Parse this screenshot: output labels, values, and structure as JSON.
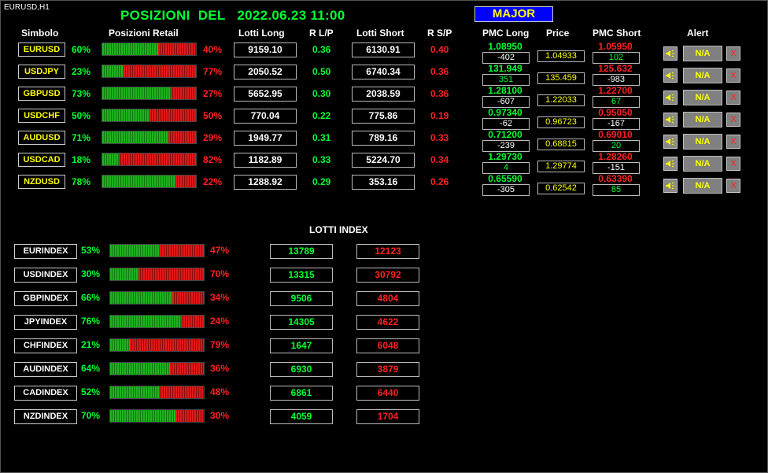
{
  "window_label": "EURUSD,H1",
  "title": "POSIZIONI  DEL   2022.06.23 11:00",
  "major_button": "MAJOR",
  "headers": {
    "symbol": "Simbolo",
    "retail": "Posizioni Retail",
    "lots_long": "Lotti Long",
    "ratio_lp": "R L/P",
    "lots_short": "Lotti Short",
    "ratio_sp": "R S/P",
    "pmc_long": "PMC Long",
    "price": "Price",
    "pmc_short": "PMC Short",
    "alert": "Alert"
  },
  "colors": {
    "long": "#00ff33",
    "short": "#ff2020",
    "symbol": "#ffff00",
    "major_bg": "#0000ff"
  },
  "pairs": [
    {
      "symbol": "EURUSD",
      "long_pct": 60,
      "long_pct_label": "60%",
      "short_pct_label": "40%",
      "lots_long": "9159.10",
      "ratio_lp": "0.36",
      "lots_short": "6130.91",
      "ratio_sp": "0.40",
      "pmc_long": "1.08950",
      "pmc_long_diff": "-402",
      "price": "1.04933",
      "pmc_short": "1.05950",
      "pmc_short_diff": "102",
      "alert": "N/A",
      "alert_close": "X"
    },
    {
      "symbol": "USDJPY",
      "long_pct": 23,
      "long_pct_label": "23%",
      "short_pct_label": "77%",
      "lots_long": "2050.52",
      "ratio_lp": "0.50",
      "lots_short": "6740.34",
      "ratio_sp": "0.36",
      "pmc_long": "131.949",
      "pmc_long_diff": "351",
      "price": "135.459",
      "pmc_short": "125.632",
      "pmc_short_diff": "-983",
      "alert": "N/A",
      "alert_close": "X"
    },
    {
      "symbol": "GBPUSD",
      "long_pct": 73,
      "long_pct_label": "73%",
      "short_pct_label": "27%",
      "lots_long": "5652.95",
      "ratio_lp": "0.30",
      "lots_short": "2038.59",
      "ratio_sp": "0.36",
      "pmc_long": "1.28100",
      "pmc_long_diff": "-607",
      "price": "1.22033",
      "pmc_short": "1.22700",
      "pmc_short_diff": "67",
      "alert": "N/A",
      "alert_close": "X"
    },
    {
      "symbol": "USDCHF",
      "long_pct": 50,
      "long_pct_label": "50%",
      "short_pct_label": "50%",
      "lots_long": "770.04",
      "ratio_lp": "0.22",
      "lots_short": "775.86",
      "ratio_sp": "0.19",
      "pmc_long": "0.97340",
      "pmc_long_diff": "-62",
      "price": "0.96723",
      "pmc_short": "0.95050",
      "pmc_short_diff": "-167",
      "alert": "N/A",
      "alert_close": "X"
    },
    {
      "symbol": "AUDUSD",
      "long_pct": 71,
      "long_pct_label": "71%",
      "short_pct_label": "29%",
      "lots_long": "1949.77",
      "ratio_lp": "0.31",
      "lots_short": "789.16",
      "ratio_sp": "0.33",
      "pmc_long": "0.71200",
      "pmc_long_diff": "-239",
      "price": "0.68815",
      "pmc_short": "0.69010",
      "pmc_short_diff": "20",
      "alert": "N/A",
      "alert_close": "X"
    },
    {
      "symbol": "USDCAD",
      "long_pct": 18,
      "long_pct_label": "18%",
      "short_pct_label": "82%",
      "lots_long": "1182.89",
      "ratio_lp": "0.33",
      "lots_short": "5224.70",
      "ratio_sp": "0.34",
      "pmc_long": "1.29730",
      "pmc_long_diff": "4",
      "price": "1.29774",
      "pmc_short": "1.28260",
      "pmc_short_diff": "-151",
      "alert": "N/A",
      "alert_close": "X"
    },
    {
      "symbol": "NZDUSD",
      "long_pct": 78,
      "long_pct_label": "78%",
      "short_pct_label": "22%",
      "lots_long": "1288.92",
      "ratio_lp": "0.29",
      "lots_short": "353.16",
      "ratio_sp": "0.26",
      "pmc_long": "0.65590",
      "pmc_long_diff": "-305",
      "price": "0.62542",
      "pmc_short": "0.63390",
      "pmc_short_diff": "85",
      "alert": "N/A",
      "alert_close": "X"
    }
  ],
  "lotti_index_title": "LOTTI INDEX",
  "indexes": [
    {
      "symbol": "EURINDEX",
      "long_pct": 53,
      "long_pct_label": "53%",
      "short_pct_label": "47%",
      "lots_long": "13789",
      "lots_short": "12123"
    },
    {
      "symbol": "USDINDEX",
      "long_pct": 30,
      "long_pct_label": "30%",
      "short_pct_label": "70%",
      "lots_long": "13315",
      "lots_short": "30792"
    },
    {
      "symbol": "GBPINDEX",
      "long_pct": 66,
      "long_pct_label": "66%",
      "short_pct_label": "34%",
      "lots_long": "9506",
      "lots_short": "4804"
    },
    {
      "symbol": "JPYINDEX",
      "long_pct": 76,
      "long_pct_label": "76%",
      "short_pct_label": "24%",
      "lots_long": "14305",
      "lots_short": "4622"
    },
    {
      "symbol": "CHFINDEX",
      "long_pct": 21,
      "long_pct_label": "21%",
      "short_pct_label": "79%",
      "lots_long": "1647",
      "lots_short": "6048"
    },
    {
      "symbol": "AUDINDEX",
      "long_pct": 64,
      "long_pct_label": "64%",
      "short_pct_label": "36%",
      "lots_long": "6930",
      "lots_short": "3879"
    },
    {
      "symbol": "CADINDEX",
      "long_pct": 52,
      "long_pct_label": "52%",
      "short_pct_label": "48%",
      "lots_long": "6861",
      "lots_short": "6440"
    },
    {
      "symbol": "NZDINDEX",
      "long_pct": 70,
      "long_pct_label": "70%",
      "short_pct_label": "30%",
      "lots_long": "4059",
      "lots_short": "1704"
    }
  ]
}
